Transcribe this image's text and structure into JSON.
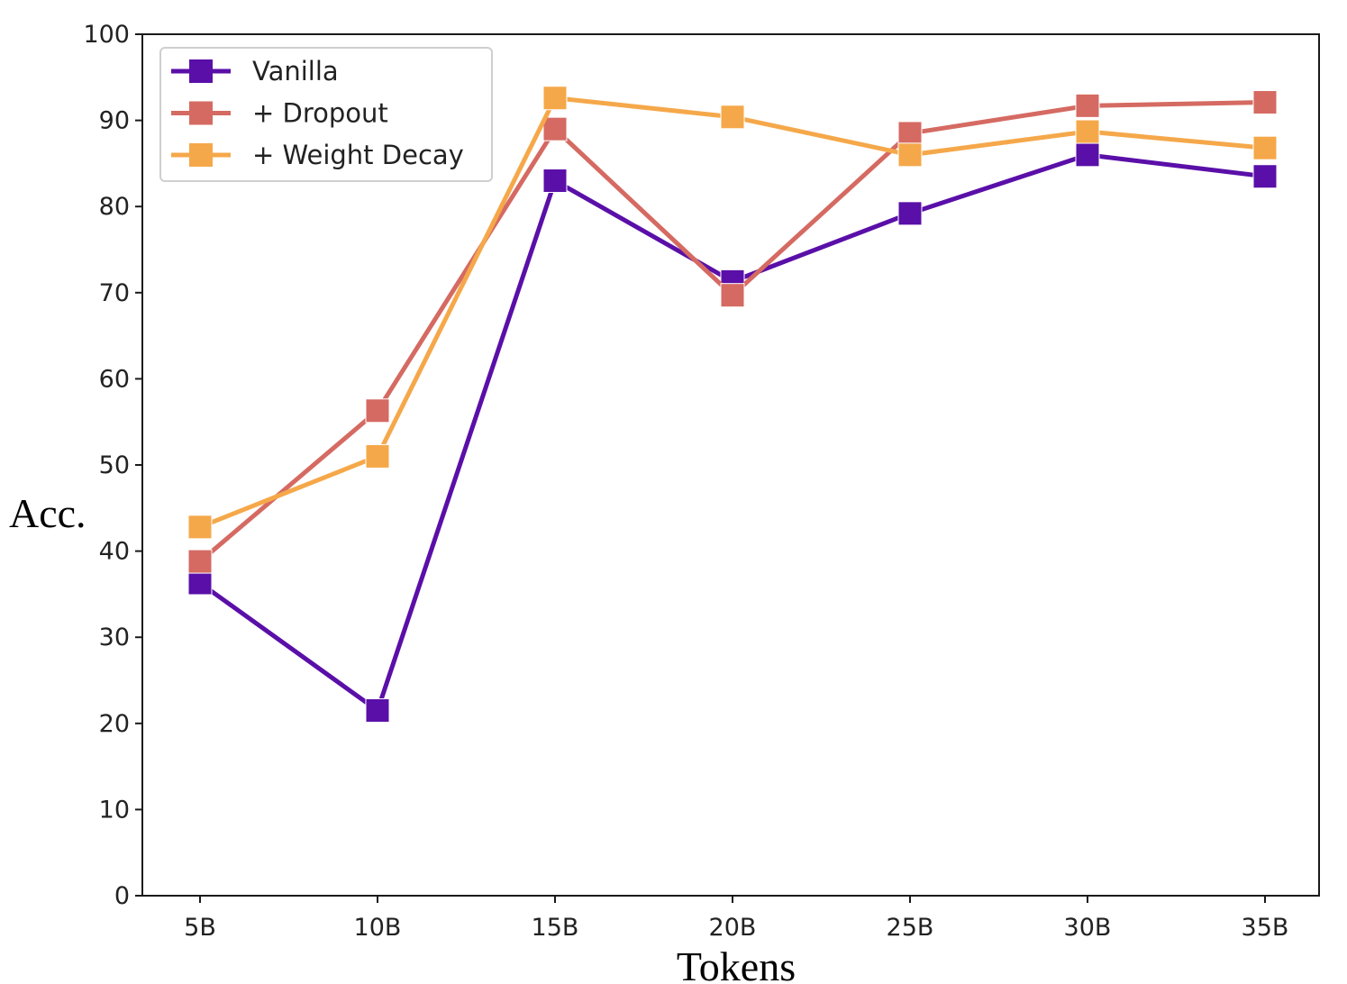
{
  "chart_data": {
    "type": "line",
    "title": "",
    "xlabel": "Tokens",
    "ylabel": "Acc.",
    "categories": [
      "5B",
      "10B",
      "15B",
      "20B",
      "25B",
      "30B",
      "35B"
    ],
    "ylim": [
      0,
      100
    ],
    "yticks": [
      0,
      10,
      20,
      30,
      40,
      50,
      60,
      70,
      80,
      90,
      100
    ],
    "grid": false,
    "legend_position": "upper-left",
    "marker": "square",
    "series": [
      {
        "name": "Vanilla",
        "color": "#5a0fa8",
        "values": [
          36.3,
          21.5,
          83.0,
          71.3,
          79.2,
          86.0,
          83.5
        ]
      },
      {
        "name": "+ Dropout",
        "color": "#d56a62",
        "values": [
          38.8,
          56.3,
          89.0,
          69.7,
          88.5,
          91.7,
          92.1
        ]
      },
      {
        "name": "+ Weight Decay",
        "color": "#f5a84a",
        "values": [
          42.8,
          51.0,
          92.6,
          90.4,
          86.0,
          88.7,
          86.8
        ]
      }
    ]
  }
}
